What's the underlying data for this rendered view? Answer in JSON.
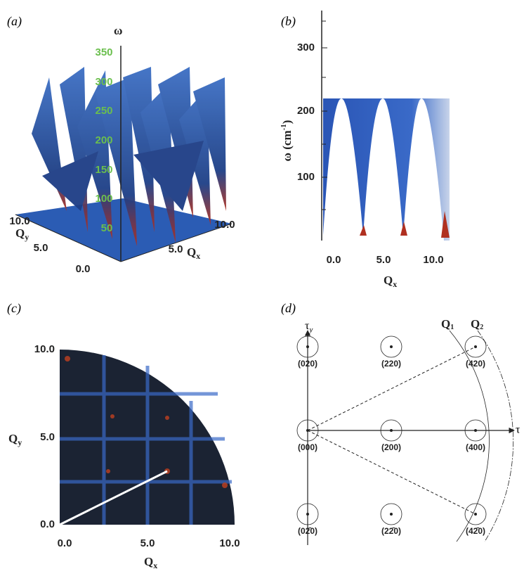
{
  "panels": [
    {
      "label": "(a)",
      "z_axis": {
        "label": "ω",
        "ticks": [
          "350",
          "300",
          "250",
          "200",
          "150",
          "100",
          "50"
        ]
      },
      "y_axis": {
        "label": "Q",
        "sub": "y",
        "ticks": [
          "10.0",
          "5.0",
          "0.0"
        ]
      },
      "x_axis": {
        "label": "Q",
        "sub": "x",
        "ticks": [
          "10.0",
          "5.0"
        ]
      }
    },
    {
      "label": "(b)",
      "y_axis": {
        "label": "ω (cm",
        "sup": "-1",
        "end": ")",
        "ticks": [
          "300",
          "200",
          "100"
        ]
      },
      "x_axis": {
        "label": "Q",
        "sub": "x",
        "ticks": [
          "0.0",
          "5.0",
          "10.0"
        ]
      }
    },
    {
      "label": "(c)",
      "y_axis": {
        "label": "Q",
        "sub": "y",
        "ticks": [
          "10.0",
          "5.0",
          "0.0"
        ]
      },
      "x_axis": {
        "label": "Q",
        "sub": "x",
        "ticks": [
          "0.0",
          "5.0",
          "10.0"
        ]
      }
    },
    {
      "label": "(d)",
      "points": [
        "(020)",
        "(220)",
        "(420)",
        "(000)",
        "(200)",
        "(400)",
        "(02̄0)",
        "(22̄0)",
        "(42̄0)"
      ],
      "tau_y": {
        "label": "τ",
        "sub": "y"
      },
      "tau_x": "τ",
      "q1": {
        "label": "Q",
        "sub": "1"
      },
      "q2": {
        "label": "Q",
        "sub": "2"
      }
    }
  ]
}
